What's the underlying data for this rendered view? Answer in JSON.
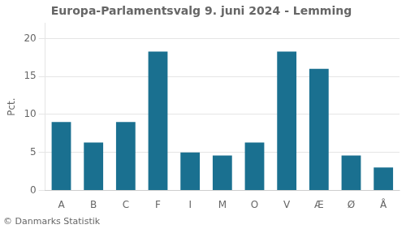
{
  "chart_data": {
    "type": "bar",
    "title": "Europa-Parlamentsvalg 9. juni 2024 - Lemming",
    "categories": [
      "A",
      "B",
      "C",
      "F",
      "I",
      "M",
      "O",
      "V",
      "Æ",
      "Ø",
      "Å"
    ],
    "values": [
      9.0,
      6.3,
      9.0,
      18.3,
      5.0,
      4.6,
      6.3,
      18.3,
      16.0,
      4.6,
      3.0
    ],
    "color": "#1a7090",
    "ylabel": "Pct.",
    "ylim": [
      0,
      22
    ],
    "yticks": [
      0,
      5,
      10,
      15,
      20
    ],
    "grid": true,
    "footer": "© Danmarks Statistik"
  }
}
